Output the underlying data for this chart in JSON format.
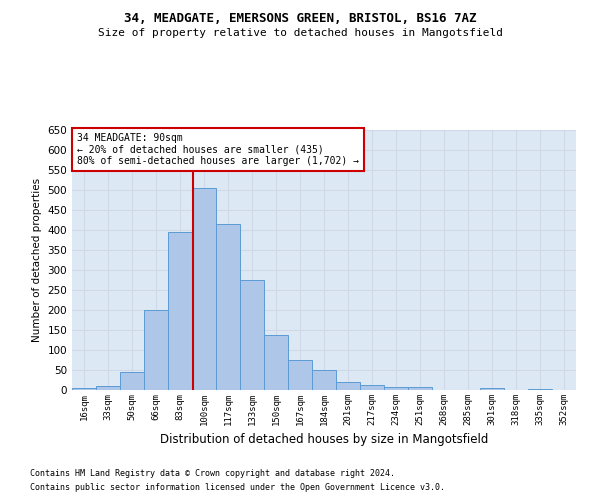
{
  "title1": "34, MEADGATE, EMERSONS GREEN, BRISTOL, BS16 7AZ",
  "title2": "Size of property relative to detached houses in Mangotsfield",
  "xlabel": "Distribution of detached houses by size in Mangotsfield",
  "ylabel": "Number of detached properties",
  "footnote1": "Contains HM Land Registry data © Crown copyright and database right 2024.",
  "footnote2": "Contains public sector information licensed under the Open Government Licence v3.0.",
  "annotation_line1": "34 MEADGATE: 90sqm",
  "annotation_line2": "← 20% of detached houses are smaller (435)",
  "annotation_line3": "80% of semi-detached houses are larger (1,702) →",
  "bar_labels": [
    "16sqm",
    "33sqm",
    "50sqm",
    "66sqm",
    "83sqm",
    "100sqm",
    "117sqm",
    "133sqm",
    "150sqm",
    "167sqm",
    "184sqm",
    "201sqm",
    "217sqm",
    "234sqm",
    "251sqm",
    "268sqm",
    "285sqm",
    "301sqm",
    "318sqm",
    "335sqm",
    "352sqm"
  ],
  "bar_values": [
    5,
    10,
    45,
    200,
    395,
    505,
    415,
    275,
    138,
    75,
    50,
    20,
    12,
    8,
    7,
    0,
    0,
    5,
    0,
    2,
    0
  ],
  "bar_color": "#aec6e8",
  "bar_edge_color": "#5b9bd5",
  "red_line_color": "#cc0000",
  "annotation_box_color": "#ffffff",
  "annotation_box_edge": "#cc0000",
  "grid_color": "#d0d8e8",
  "background_color": "#dde8f5",
  "ylim": [
    0,
    650
  ],
  "yticks": [
    0,
    50,
    100,
    150,
    200,
    250,
    300,
    350,
    400,
    450,
    500,
    550,
    600,
    650
  ],
  "fig_width": 6.0,
  "fig_height": 5.0,
  "fig_dpi": 100
}
